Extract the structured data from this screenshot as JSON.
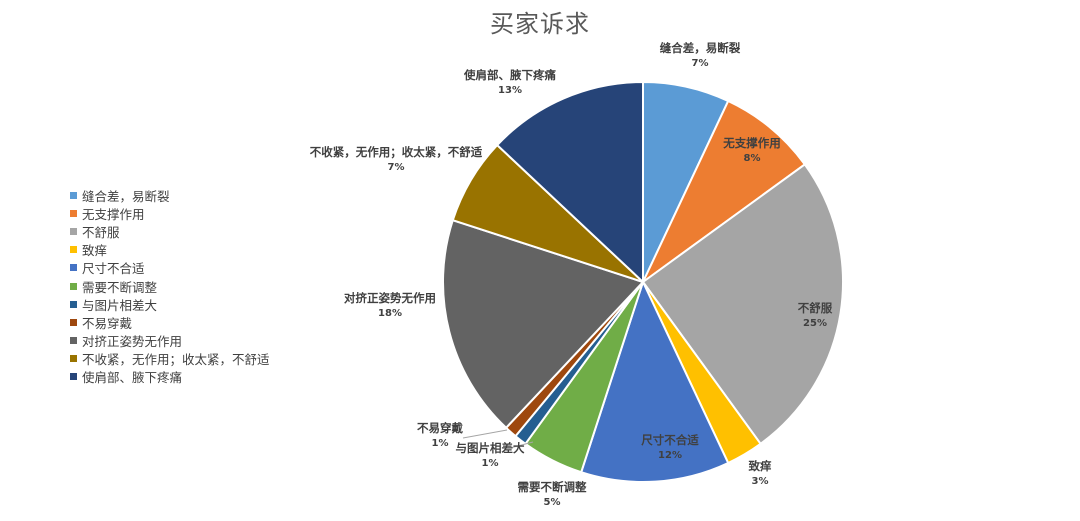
{
  "chart_data": {
    "type": "pie",
    "title": "买家诉求",
    "legend_position": "left",
    "slices": [
      {
        "label": "缝合差，易断裂",
        "value": 7,
        "pct_label": "7%",
        "color": "#5B9BD5"
      },
      {
        "label": "无支撑作用",
        "value": 8,
        "pct_label": "8%",
        "color": "#ED7D31"
      },
      {
        "label": "不舒服",
        "value": 25,
        "pct_label": "25%",
        "color": "#A5A5A5"
      },
      {
        "label": "致痒",
        "value": 3,
        "pct_label": "3%",
        "color": "#FFC000"
      },
      {
        "label": "尺寸不合适",
        "value": 12,
        "pct_label": "12%",
        "color": "#4472C4"
      },
      {
        "label": "需要不断调整",
        "value": 5,
        "pct_label": "5%",
        "color": "#70AD47"
      },
      {
        "label": "与图片相差大",
        "value": 1,
        "pct_label": "1%",
        "color": "#255E91"
      },
      {
        "label": "不易穿戴",
        "value": 1,
        "pct_label": "1%",
        "color": "#9E480E"
      },
      {
        "label": "对挤正姿势无作用",
        "value": 18,
        "pct_label": "18%",
        "color": "#636363"
      },
      {
        "label": "不收紧，无作用；收太紧，不舒适",
        "value": 7,
        "pct_label": "7%",
        "color": "#997300"
      },
      {
        "label": "使肩部、腋下疼痛",
        "value": 13,
        "pct_label": "13%",
        "color": "#264478"
      }
    ]
  }
}
